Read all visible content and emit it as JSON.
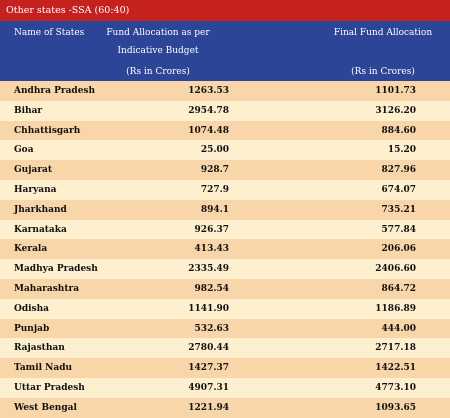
{
  "title": "Other states -SSA (60:40)",
  "headers": {
    "name": "Name of States",
    "col1_line1": "Fund Allocation as per",
    "col1_line2": "Indicative Budget",
    "col1_unit": "(Rs in Crores)",
    "col2_line1": "Final Fund Allocation",
    "col2_unit": "(Rs in Crores)"
  },
  "rows": [
    {
      "state": "Andhra Pradesh",
      "budget": "1263.53",
      "final": "1101.73"
    },
    {
      "state": "Bihar",
      "budget": "2954.78",
      "final": "3126.20"
    },
    {
      "state": "Chhattisgarh",
      "budget": "1074.48",
      "final": "884.60"
    },
    {
      "state": "Goa",
      "budget": "25.00",
      "final": "15.20"
    },
    {
      "state": "Gujarat",
      "budget": "928.7",
      "final": "827.96"
    },
    {
      "state": "Haryana",
      "budget": "727.9",
      "final": "674.07"
    },
    {
      "state": "Jharkhand",
      "budget": "894.1",
      "final": "735.21"
    },
    {
      "state": "Karnataka",
      "budget": "926.37",
      "final": "577.84"
    },
    {
      "state": "Kerala",
      "budget": "413.43",
      "final": "206.06"
    },
    {
      "state": "Madhya Pradesh",
      "budget": "2335.49",
      "final": "2406.60"
    },
    {
      "state": "Maharashtra",
      "budget": "982.54",
      "final": "864.72"
    },
    {
      "state": "Odisha",
      "budget": "1141.90",
      "final": "1186.89"
    },
    {
      "state": "Punjab",
      "budget": "532.63",
      "final": "444.00"
    },
    {
      "state": "Rajasthan",
      "budget": "2780.44",
      "final": "2717.18"
    },
    {
      "state": "Tamil Nadu",
      "budget": "1427.37",
      "final": "1422.51"
    },
    {
      "state": "Uttar Pradesh",
      "budget": "4907.31",
      "final": "4773.10"
    },
    {
      "state": "West Bengal",
      "budget": "1221.94",
      "final": "1093.65"
    }
  ],
  "colors": {
    "title_bg": "#c5211f",
    "header_bg": "#2c4596",
    "row_alt": "#f8d6a9",
    "row_norm": "#fef0ce"
  }
}
